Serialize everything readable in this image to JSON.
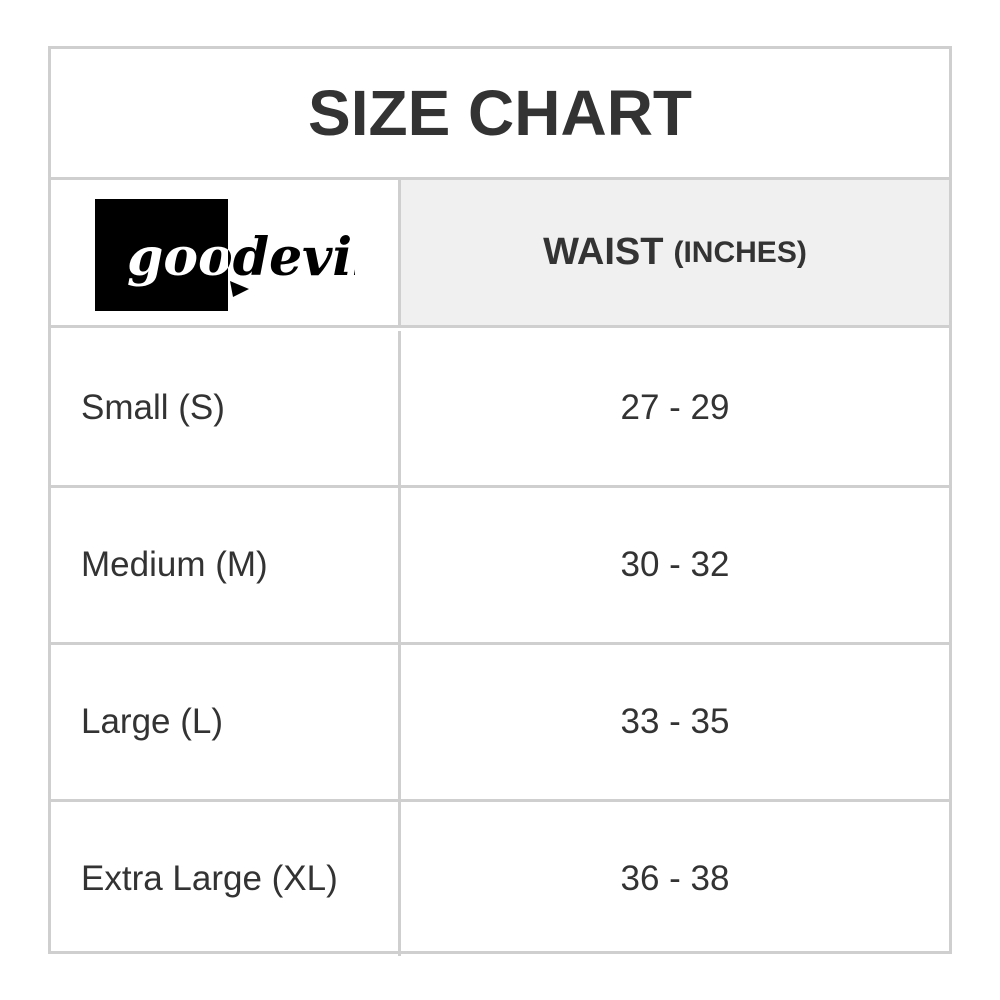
{
  "header": {
    "title": "SIZE CHART"
  },
  "logo": {
    "text": "goodevil"
  },
  "table": {
    "columns": [
      {
        "label": "WAIST",
        "unit": "(INCHES)"
      }
    ],
    "rows": [
      [
        "Small (S)",
        "27 - 29"
      ],
      [
        "Medium (M)",
        "30 - 32"
      ],
      [
        "Large (L)",
        "33 - 35"
      ],
      [
        "Extra Large (XL)",
        "36 - 38"
      ]
    ]
  }
}
